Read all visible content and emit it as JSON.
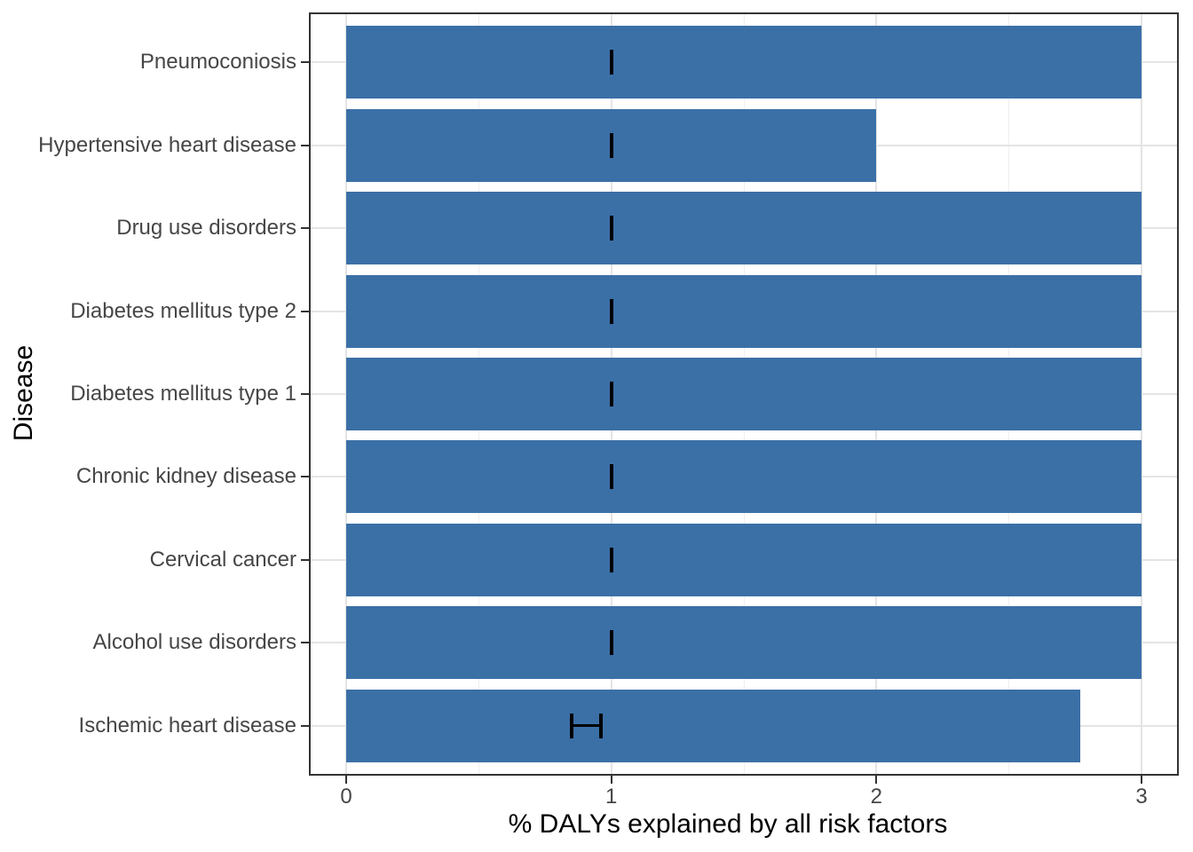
{
  "chart_data": {
    "type": "bar",
    "orientation": "horizontal",
    "title": "",
    "xlabel": "% DALYs explained by all risk factors",
    "ylabel": "Disease",
    "xlim": [
      -0.15,
      3.15
    ],
    "x_ticks": [
      0,
      1,
      2,
      3
    ],
    "x_minor_gridlines": [
      0.5,
      1.5,
      2.5
    ],
    "grid": "major and minor vertical, major horizontal, light gray on white",
    "legend": "none",
    "categories_top_to_bottom": [
      "Pneumoconiosis",
      "Hypertensive heart disease",
      "Drug use disorders",
      "Diabetes mellitus type 2",
      "Diabetes mellitus type 1",
      "Chronic kidney disease",
      "Cervical cancer",
      "Alcohol use disorders",
      "Ischemic heart disease"
    ],
    "values": [
      3.0,
      2.0,
      3.0,
      3.0,
      3.0,
      3.0,
      3.0,
      3.0,
      2.77
    ],
    "error_bars": [
      {
        "xmin": 1.0,
        "xmax": 1.0
      },
      {
        "xmin": 1.0,
        "xmax": 1.0
      },
      {
        "xmin": 1.0,
        "xmax": 1.0
      },
      {
        "xmin": 1.0,
        "xmax": 1.0
      },
      {
        "xmin": 1.0,
        "xmax": 1.0
      },
      {
        "xmin": 1.0,
        "xmax": 1.0
      },
      {
        "xmin": 1.0,
        "xmax": 1.0
      },
      {
        "xmin": 1.0,
        "xmax": 1.0
      },
      {
        "xmin": 0.85,
        "xmax": 0.96
      }
    ],
    "colors": {
      "bar_fill": "#3B70A7",
      "error_bar": "#000000",
      "grid_major": "#E4E4E4",
      "grid_minor": "#EFEFEF",
      "panel_border": "#333333",
      "tick_mark": "#333333",
      "tick_label": "#464646",
      "axis_title": "#000000",
      "background": "#FFFFFF"
    }
  }
}
